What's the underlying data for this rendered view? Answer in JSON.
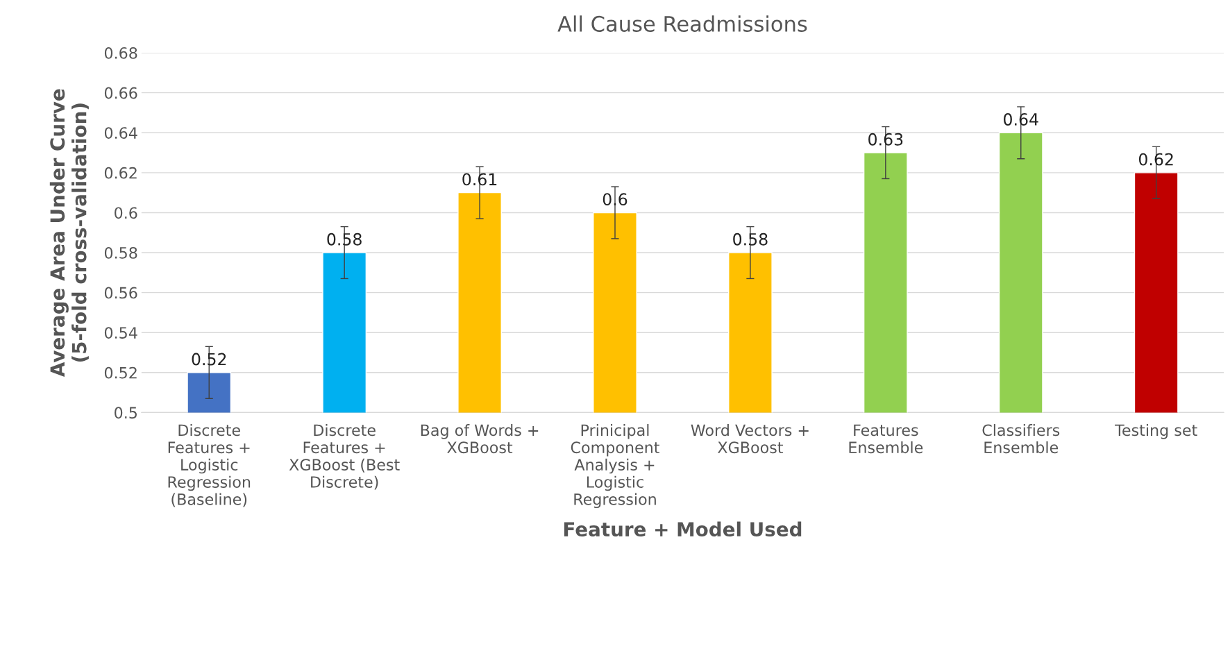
{
  "chart_data": {
    "type": "bar",
    "title": "All Cause Readmissions",
    "xlabel": "Feature + Model Used",
    "ylabel": "Average Area Under Curve\n(5-fold cross-validation)",
    "categories": [
      "Discrete Features + Logistic Regression (Baseline)",
      "Discrete Features + XGBoost (Best Discrete)",
      "Bag of Words + XGBoost",
      "Prinicipal Component Analysis + Logistic Regression",
      "Word Vectors + XGBoost",
      "Features Ensemble",
      "Classifiers Ensemble",
      "Testing set"
    ],
    "values": [
      0.52,
      0.58,
      0.61,
      0.6,
      0.58,
      0.63,
      0.64,
      0.62
    ],
    "errors": [
      0.013,
      0.013,
      0.013,
      0.013,
      0.013,
      0.013,
      0.013,
      0.013
    ],
    "colors": [
      "#4472c4",
      "#00b0f0",
      "#ffc000",
      "#ffc000",
      "#ffc000",
      "#92d050",
      "#92d050",
      "#c00000"
    ],
    "ylim": [
      0.5,
      0.68
    ],
    "yticks": [
      0.5,
      0.52,
      0.54,
      0.56,
      0.58,
      0.6,
      0.62,
      0.64,
      0.66,
      0.68
    ],
    "grid": "y",
    "data_labels": true
  }
}
